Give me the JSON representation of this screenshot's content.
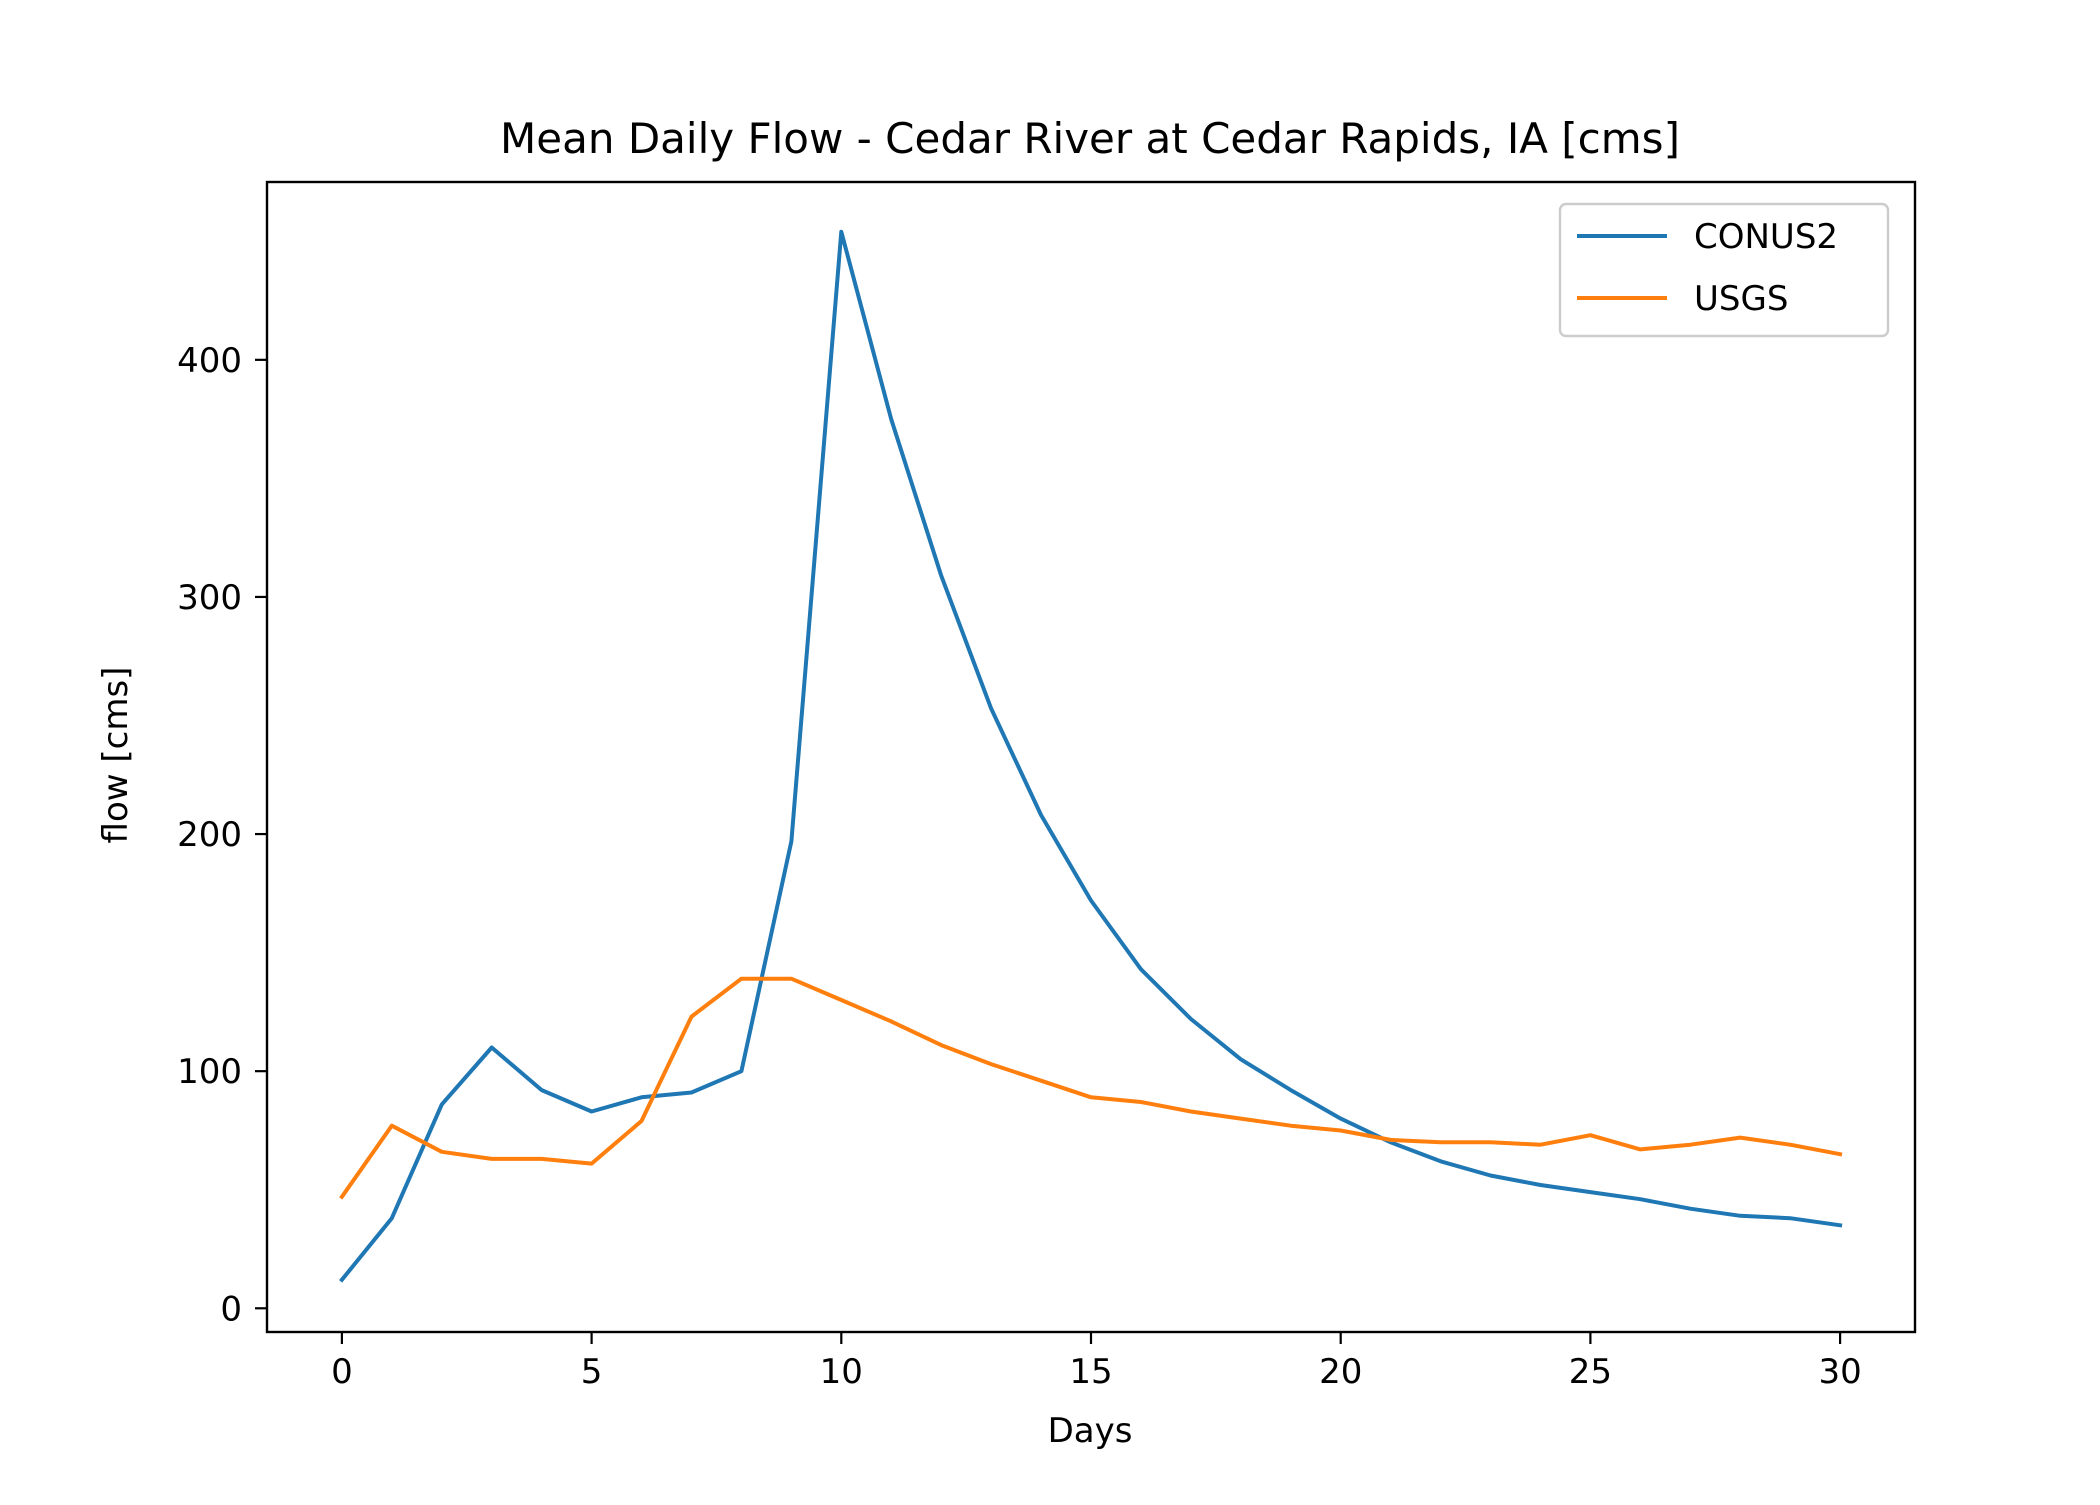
{
  "chart_data": {
    "type": "line",
    "title": "Mean Daily Flow - Cedar River at Cedar Rapids, IA [cms]",
    "xlabel": "Days",
    "ylabel": "flow [cms]",
    "xlim": [
      -1.5,
      31.5
    ],
    "ylim": [
      -10,
      475
    ],
    "xticks": [
      0,
      5,
      10,
      15,
      20,
      25,
      30
    ],
    "yticks": [
      0,
      100,
      200,
      300,
      400
    ],
    "grid": false,
    "legend_position": "top-right",
    "x": [
      0,
      1,
      2,
      3,
      4,
      5,
      6,
      7,
      8,
      9,
      10,
      11,
      12,
      13,
      14,
      15,
      16,
      17,
      18,
      19,
      20,
      21,
      22,
      23,
      24,
      25,
      26,
      27,
      28,
      29,
      30
    ],
    "series": [
      {
        "name": "CONUS2",
        "color": "#1f77b4",
        "values": [
          12,
          38,
          86,
          110,
          92,
          83,
          89,
          91,
          100,
          197,
          454,
          375,
          309,
          253,
          208,
          172,
          143,
          122,
          105,
          92,
          80,
          70,
          62,
          56,
          52,
          49,
          46,
          42,
          39,
          38,
          35
        ]
      },
      {
        "name": "USGS",
        "color": "#ff7f0e",
        "values": [
          47,
          77,
          66,
          63,
          63,
          61,
          79,
          123,
          139,
          139,
          130,
          121,
          111,
          103,
          96,
          89,
          87,
          83,
          80,
          77,
          75,
          71,
          70,
          70,
          69,
          73,
          67,
          69,
          72,
          69,
          65
        ]
      }
    ]
  }
}
